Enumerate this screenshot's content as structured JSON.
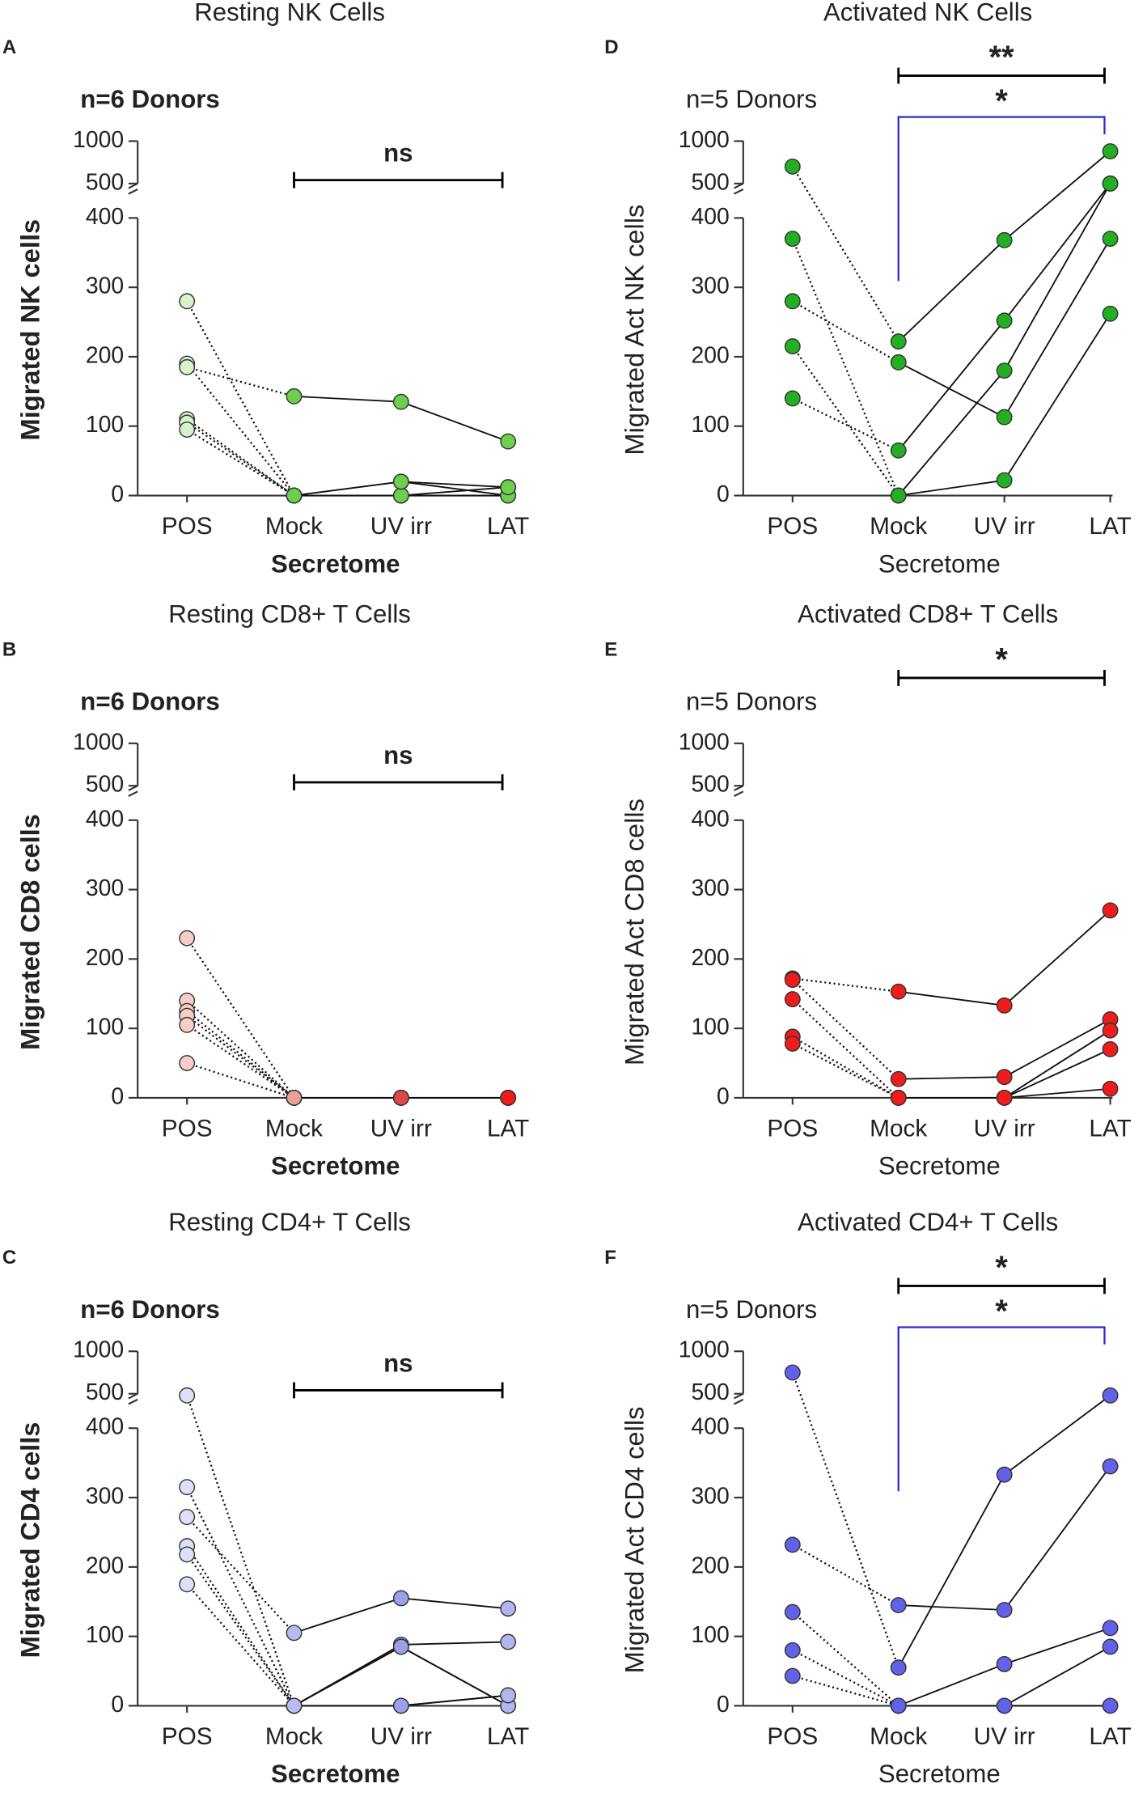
{
  "chart_data": [
    {
      "type": "line",
      "panel": "A",
      "title": "Resting NK Cells",
      "annotation": "n=6 Donors",
      "ylabel": "Migrated NK cells",
      "xlabel": "Secretome",
      "font_weight": "bold",
      "categories": [
        "POS",
        "Mock",
        "UV irr",
        "LAT"
      ],
      "ylim": [
        0,
        1000
      ],
      "axis_break": [
        400,
        500
      ],
      "yticks": [
        0,
        100,
        200,
        300,
        400,
        500,
        1000
      ],
      "point_colors": [
        "#d8f2cc",
        "#6ccf4e",
        "#6ccf4e",
        "#6ccf4e"
      ],
      "line_styles": [
        "dotted",
        "solid",
        "solid"
      ],
      "series": [
        {
          "values": [
            280,
            0,
            0,
            0
          ]
        },
        {
          "values": [
            190,
            0,
            20,
            0
          ]
        },
        {
          "values": [
            185,
            143,
            135,
            78
          ]
        },
        {
          "values": [
            110,
            0,
            0,
            12
          ]
        },
        {
          "values": [
            105,
            0,
            0,
            0
          ]
        },
        {
          "values": [
            95,
            0,
            20,
            12
          ]
        }
      ],
      "comparisons": [
        {
          "from": "Mock",
          "to": "LAT",
          "label": "ns",
          "color": "#000000",
          "style": "bar"
        }
      ]
    },
    {
      "type": "line",
      "panel": "D",
      "title": "Activated NK Cells",
      "annotation": "n=5 Donors",
      "ylabel": "Migrated Act NK cells",
      "xlabel": "Secretome",
      "font_weight": "normal",
      "categories": [
        "POS",
        "Mock",
        "UV irr",
        "LAT"
      ],
      "ylim": [
        0,
        1000
      ],
      "axis_break": [
        400,
        500
      ],
      "yticks": [
        0,
        100,
        200,
        300,
        400,
        500,
        1000
      ],
      "point_colors": [
        "#22b022",
        "#22b022",
        "#22b022",
        "#22b022"
      ],
      "line_styles": [
        "dotted",
        "solid",
        "solid"
      ],
      "series": [
        {
          "values": [
            700,
            222,
            368,
            880
          ]
        },
        {
          "values": [
            370,
            0,
            180,
            500
          ]
        },
        {
          "values": [
            280,
            192,
            113,
            370
          ]
        },
        {
          "values": [
            215,
            0,
            22,
            262
          ]
        },
        {
          "values": [
            140,
            65,
            252,
            500
          ]
        }
      ],
      "comparisons": [
        {
          "from": "Mock",
          "to": "LAT",
          "label": "**",
          "color": "#000000",
          "style": "bar"
        },
        {
          "from": "Mock",
          "to": "LAT",
          "label": "*",
          "color": "#2a2ad0",
          "style": "bracket"
        }
      ]
    },
    {
      "type": "line",
      "panel": "B",
      "title": "Resting CD8+ T Cells",
      "annotation": "n=6 Donors",
      "ylabel": "Migrated CD8 cells",
      "xlabel": "Secretome",
      "font_weight": "bold",
      "categories": [
        "POS",
        "Mock",
        "UV irr",
        "LAT"
      ],
      "ylim": [
        0,
        1000
      ],
      "axis_break": [
        400,
        500
      ],
      "yticks": [
        0,
        100,
        200,
        300,
        400,
        500,
        1000
      ],
      "point_colors": [
        "#f5cfc6",
        "#e8a097",
        "#e04848",
        "#ee1c1c"
      ],
      "line_styles": [
        "dotted",
        "solid",
        "solid"
      ],
      "series": [
        {
          "values": [
            230,
            0,
            0,
            0
          ]
        },
        {
          "values": [
            140,
            0,
            0,
            0
          ]
        },
        {
          "values": [
            125,
            0,
            0,
            0
          ]
        },
        {
          "values": [
            118,
            0,
            0,
            0
          ]
        },
        {
          "values": [
            105,
            0,
            0,
            0
          ]
        },
        {
          "values": [
            50,
            0,
            0,
            0
          ]
        }
      ],
      "comparisons": [
        {
          "from": "Mock",
          "to": "LAT",
          "label": "ns",
          "color": "#000000",
          "style": "bar"
        }
      ]
    },
    {
      "type": "line",
      "panel": "E",
      "title": "Activated CD8+ T Cells",
      "annotation": "n=5 Donors",
      "ylabel": "Migrated Act CD8 cells",
      "xlabel": "Secretome",
      "font_weight": "normal",
      "categories": [
        "POS",
        "Mock",
        "UV irr",
        "LAT"
      ],
      "ylim": [
        0,
        1000
      ],
      "axis_break": [
        400,
        500
      ],
      "yticks": [
        0,
        100,
        200,
        300,
        400,
        500,
        1000
      ],
      "point_colors": [
        "#ee1c1c",
        "#ee1c1c",
        "#ee1c1c",
        "#ee1c1c"
      ],
      "line_styles": [
        "dotted",
        "solid",
        "solid"
      ],
      "series": [
        {
          "values": [
            172,
            153,
            133,
            270
          ]
        },
        {
          "values": [
            170,
            27,
            30,
            113
          ]
        },
        {
          "values": [
            142,
            0,
            0,
            97
          ]
        },
        {
          "values": [
            88,
            0,
            0,
            70
          ]
        },
        {
          "values": [
            78,
            0,
            0,
            13
          ]
        }
      ],
      "comparisons": [
        {
          "from": "Mock",
          "to": "LAT",
          "label": "*",
          "color": "#000000",
          "style": "bar"
        }
      ]
    },
    {
      "type": "line",
      "panel": "C",
      "title": "Resting CD4+ T Cells",
      "annotation": "n=6 Donors",
      "ylabel": "Migrated CD4 cells",
      "xlabel": "Secretome",
      "font_weight": "bold",
      "categories": [
        "POS",
        "Mock",
        "UV irr",
        "LAT"
      ],
      "ylim": [
        0,
        1000
      ],
      "axis_break": [
        400,
        500
      ],
      "yticks": [
        0,
        100,
        200,
        300,
        400,
        500,
        1000
      ],
      "point_colors": [
        "#dde1f7",
        "#b7bdf0",
        "#9aa0ea",
        "#b0b6ee"
      ],
      "line_styles": [
        "dotted",
        "solid",
        "solid"
      ],
      "series": [
        {
          "values": [
            480,
            0,
            85,
            0
          ]
        },
        {
          "values": [
            315,
            0,
            0,
            15
          ]
        },
        {
          "values": [
            272,
            105,
            155,
            140
          ]
        },
        {
          "values": [
            230,
            0,
            88,
            92
          ]
        },
        {
          "values": [
            218,
            0,
            85,
            0
          ]
        },
        {
          "values": [
            175,
            0,
            0,
            15
          ]
        }
      ],
      "comparisons": [
        {
          "from": "Mock",
          "to": "LAT",
          "label": "ns",
          "color": "#000000",
          "style": "bar"
        }
      ]
    },
    {
      "type": "line",
      "panel": "F",
      "title": "Activated CD4+ T Cells",
      "annotation": "n=5 Donors",
      "ylabel": "Migrated Act CD4 cells",
      "xlabel": "Secretome",
      "font_weight": "normal",
      "categories": [
        "POS",
        "Mock",
        "UV irr",
        "LAT"
      ],
      "ylim": [
        0,
        1000
      ],
      "axis_break": [
        400,
        500
      ],
      "yticks": [
        0,
        100,
        200,
        300,
        400,
        500,
        1000
      ],
      "point_colors": [
        "#6262e8",
        "#6262e8",
        "#6262e8",
        "#6262e8"
      ],
      "line_styles": [
        "dotted",
        "solid",
        "solid"
      ],
      "series": [
        {
          "values": [
            750,
            55,
            333,
            480
          ]
        },
        {
          "values": [
            232,
            145,
            138,
            345
          ]
        },
        {
          "values": [
            135,
            0,
            60,
            112
          ]
        },
        {
          "values": [
            80,
            0,
            0,
            85
          ]
        },
        {
          "values": [
            43,
            0,
            0,
            0
          ]
        }
      ],
      "comparisons": [
        {
          "from": "Mock",
          "to": "LAT",
          "label": "*",
          "color": "#000000",
          "style": "bar"
        },
        {
          "from": "Mock",
          "to": "LAT",
          "label": "*",
          "color": "#2a2ad0",
          "style": "bracket"
        }
      ]
    }
  ]
}
